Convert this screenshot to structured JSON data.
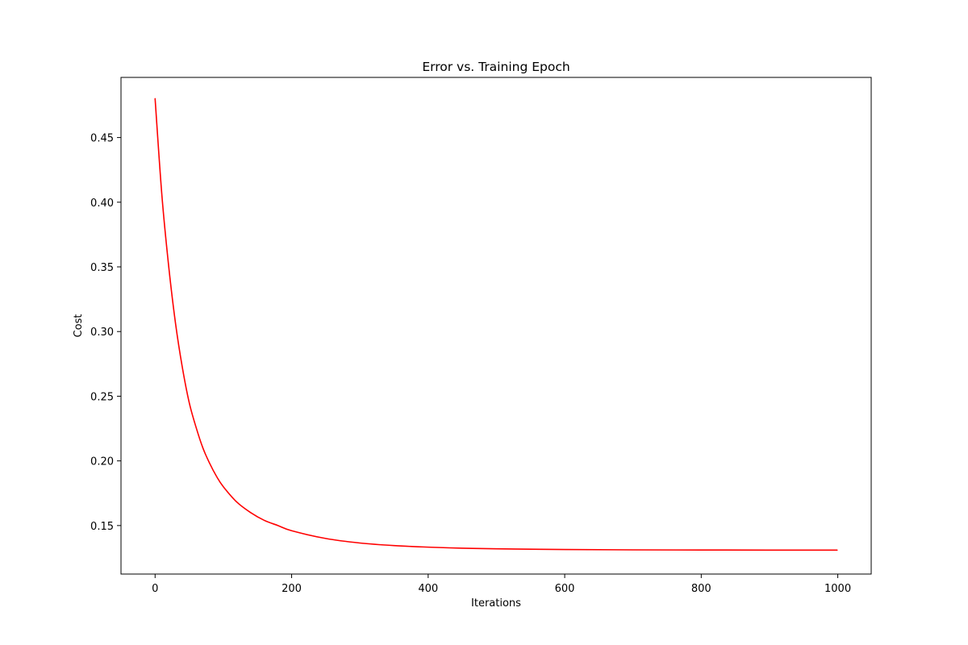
{
  "chart_data": {
    "type": "line",
    "title": "Error vs. Training Epoch",
    "xlabel": "Iterations",
    "ylabel": "Cost",
    "xlim": [
      -49.95,
      1048.95
    ],
    "ylim": [
      0.1125,
      0.4965
    ],
    "xticks": [
      0,
      200,
      400,
      600,
      800,
      1000
    ],
    "yticks": [
      0.15,
      0.2,
      0.25,
      0.3,
      0.35,
      0.4,
      0.45
    ],
    "xtick_labels": [
      "0",
      "200",
      "400",
      "600",
      "800",
      "1000"
    ],
    "ytick_labels": [
      "0.15",
      "0.20",
      "0.25",
      "0.30",
      "0.35",
      "0.40",
      "0.45"
    ],
    "grid": false,
    "series": [
      {
        "color": "#ff0000",
        "x": [
          0,
          10,
          20,
          30,
          40,
          50,
          60,
          70,
          80,
          90,
          100,
          120,
          140,
          160,
          180,
          200,
          250,
          300,
          350,
          400,
          450,
          500,
          600,
          700,
          800,
          900,
          999
        ],
        "y": [
          0.48,
          0.405,
          0.35,
          0.306,
          0.272,
          0.245,
          0.226,
          0.21,
          0.198,
          0.188,
          0.18,
          0.168,
          0.16,
          0.154,
          0.15,
          0.146,
          0.14,
          0.1365,
          0.1345,
          0.1333,
          0.1325,
          0.132,
          0.1315,
          0.1312,
          0.1311,
          0.131,
          0.131
        ]
      }
    ]
  }
}
